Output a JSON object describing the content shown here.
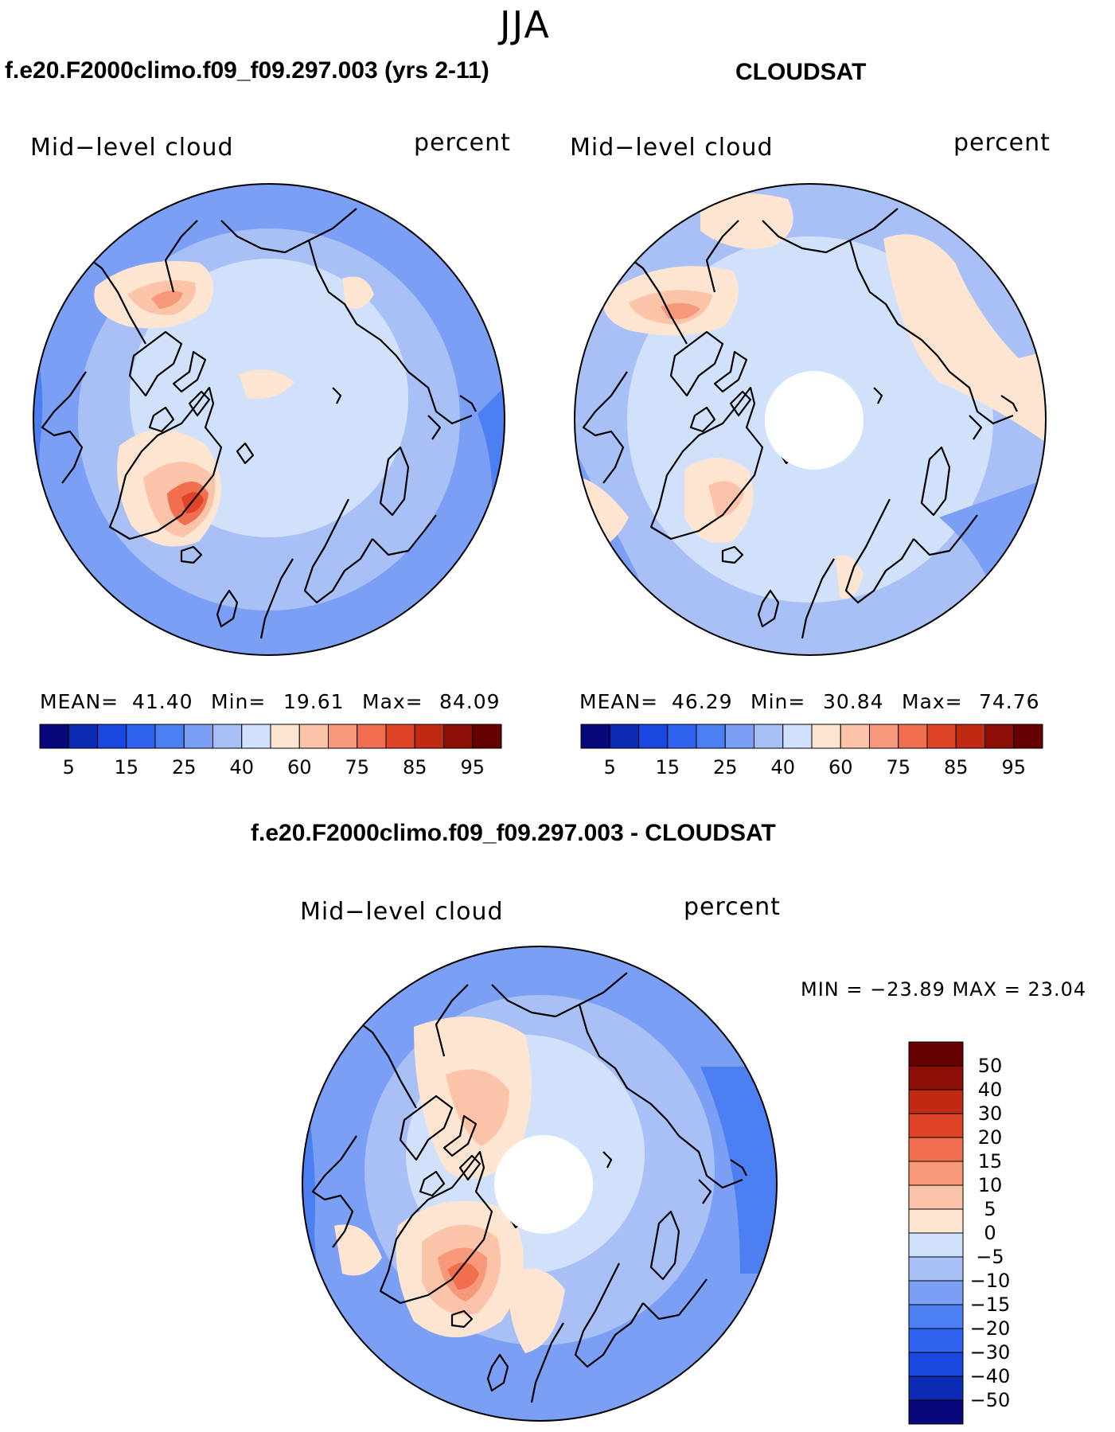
{
  "page": {
    "season": "JJA",
    "left_title": "f.e20.F2000climo.f09_f09.297.003 (yrs 2-11)",
    "right_title": "CLOUDSAT",
    "diff_title": "f.e20.F2000climo.f09_f09.297.003 - CLOUDSAT"
  },
  "panels": {
    "model": {
      "variable": "Mid−level cloud",
      "units": "percent",
      "mean_label": "MEAN=",
      "mean": "41.40",
      "min_label": "Min=",
      "min": "19.61",
      "max_label": "Max=",
      "max": "84.09"
    },
    "obs": {
      "variable": "Mid−level cloud",
      "units": "percent",
      "mean_label": "MEAN=",
      "mean": "46.29",
      "min_label": "Min=",
      "min": "30.84",
      "max_label": "Max=",
      "max": "74.76"
    },
    "diff": {
      "variable": "Mid−level cloud",
      "units": "percent",
      "minmax_text": "MIN = −23.89  MAX =   23.04"
    }
  },
  "colorbars": {
    "abs_colors": [
      "#08087a",
      "#0b2bb4",
      "#1a47e0",
      "#2f62ef",
      "#4b7ff2",
      "#7a9ff4",
      "#a8c0f6",
      "#d2e1fb",
      "#fde5d2",
      "#fbc3a8",
      "#f7987a",
      "#f06f4f",
      "#e04427",
      "#c02a12",
      "#8c0d05",
      "#640000"
    ],
    "abs_ticks": [
      "5",
      "15",
      "25",
      "40",
      "60",
      "75",
      "85",
      "95"
    ],
    "diff_colors": [
      "#08087a",
      "#0b2bb4",
      "#1a47e0",
      "#2f62ef",
      "#4b7ff2",
      "#7a9ff4",
      "#a8c0f6",
      "#d2e1fb",
      "#fde5d2",
      "#fbc3a8",
      "#f7987a",
      "#f06f4f",
      "#e04427",
      "#c02a12",
      "#8c0d05",
      "#640000"
    ],
    "diff_ticks": [
      "50",
      "40",
      "30",
      "20",
      "15",
      "10",
      "5",
      "0",
      "−5",
      "−10",
      "−15",
      "−20",
      "−30",
      "−40",
      "−50"
    ]
  },
  "map_colors": {
    "land_line": "#000000",
    "blue_dark": "#4b7ff2",
    "blue_mid": "#7a9ff4",
    "blue_light": "#a8c0f6",
    "blue_pale": "#d2e1fb",
    "red_pale": "#fde5d2",
    "red_light": "#fbc3a8",
    "red_mid": "#f7987a",
    "red_strong": "#f06f4f",
    "red_dark": "#e04427"
  }
}
